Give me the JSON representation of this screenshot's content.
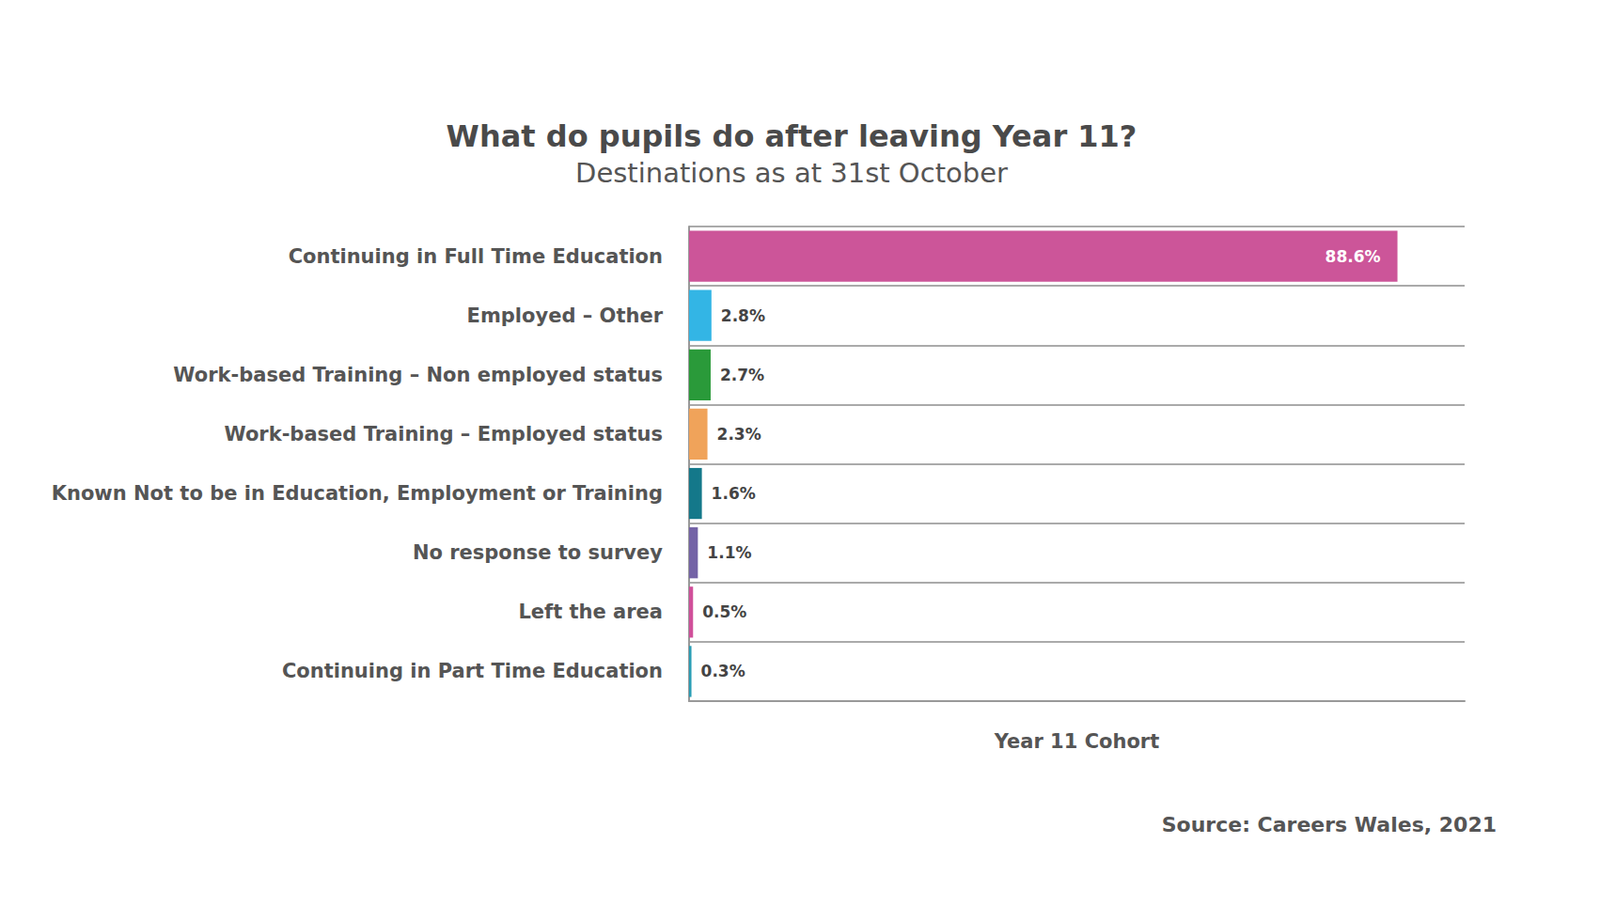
{
  "chart_data": {
    "type": "bar",
    "orientation": "horizontal",
    "title": "What do pupils do after leaving Year 11?",
    "subtitle": "Destinations as at 31st October",
    "x_label": "Year 11 Cohort",
    "source": "Source: Careers Wales, 2021",
    "categories": [
      "Continuing in Full Time Education",
      "Employed – Other",
      "Work-based Training – Non employed status",
      "Work-based Training – Employed status",
      "Known Not to be in Education, Employment or Training",
      "No response to survey",
      "Left the area",
      "Continuing in Part Time Education"
    ],
    "values": [
      88.6,
      2.8,
      2.7,
      2.3,
      1.6,
      1.1,
      0.5,
      0.3
    ],
    "value_labels": [
      "88.6%",
      "2.8%",
      "2.7%",
      "2.3%",
      "1.6%",
      "1.1%",
      "0.5%",
      "0.3%"
    ],
    "colors": [
      "#cc5599",
      "#33b5e5",
      "#2a9a3a",
      "#f0a35a",
      "#14788a",
      "#7463a6",
      "#d0509a",
      "#2a9db5"
    ],
    "xlim": [
      0,
      97
    ],
    "xticks": [],
    "tick_labels": "y",
    "data_labels": true,
    "grid": true
  }
}
